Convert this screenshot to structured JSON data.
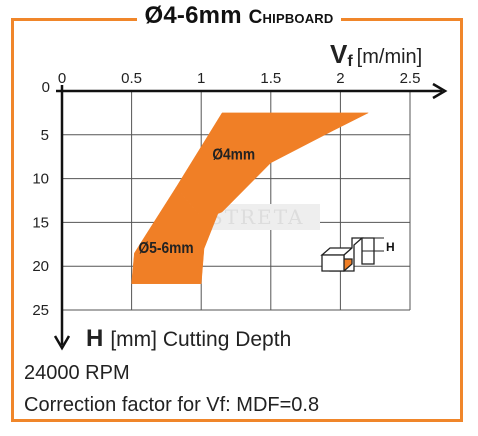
{
  "title": {
    "main": "Ø4-6mm",
    "sub": "Chipboard"
  },
  "footer": {
    "rpm": "24000 RPM",
    "correction": "Correction factor for Vf: MDF=0.8"
  },
  "watermark": "INSTRETA",
  "inset_label": "H",
  "colors": {
    "accent": "#f0862a",
    "band": "#f07f26",
    "grid": "#555555",
    "axis": "#111111"
  },
  "chart_data": {
    "type": "area",
    "xlabel": {
      "symbol": "Vf",
      "unit": "[m/min]"
    },
    "ylabel": {
      "symbol": "H",
      "unit": "[mm] Cutting Depth"
    },
    "xlim": [
      0,
      2.5
    ],
    "ylim": [
      0,
      25
    ],
    "x_ticks": [
      0,
      0.5,
      1,
      1.5,
      2,
      2.5
    ],
    "y_ticks": [
      0,
      5,
      10,
      15,
      20,
      25
    ],
    "x_tick_labels": [
      "0",
      "0.5",
      "1",
      "1.5",
      "2",
      "2.5"
    ],
    "y_tick_labels": [
      "0",
      "5",
      "10",
      "15",
      "20",
      "25"
    ],
    "grid": true,
    "y_inverted": true,
    "series": [
      {
        "name": "Ø4mm",
        "polygon": [
          [
            1.15,
            2.5
          ],
          [
            2.2,
            2.5
          ],
          [
            1.95,
            4.5
          ],
          [
            1.5,
            8.2
          ],
          [
            1.15,
            13.8
          ],
          [
            1.12,
            14.0
          ],
          [
            0.98,
            14.0
          ],
          [
            0.82,
            11.0
          ]
        ]
      },
      {
        "name": "Ø5-6mm",
        "polygon": [
          [
            0.82,
            11.0
          ],
          [
            0.98,
            14.0
          ],
          [
            1.12,
            14.0
          ],
          [
            1.02,
            18.0
          ],
          [
            1.0,
            22.0
          ],
          [
            0.5,
            22.0
          ],
          [
            0.52,
            18.5
          ],
          [
            0.6,
            16.5
          ]
        ]
      }
    ]
  }
}
